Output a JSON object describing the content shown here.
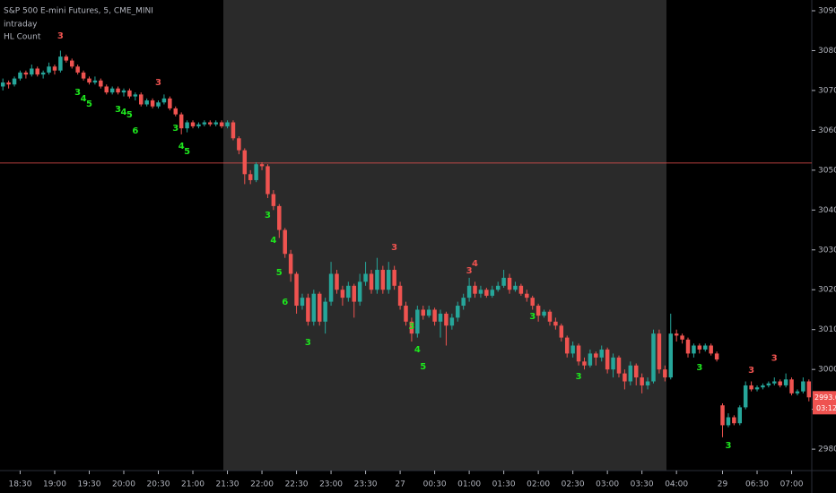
{
  "chart_data": {
    "type": "candlestick",
    "title": "S&P 500 E-mini Futures, 5, CME_MINI",
    "subtitle": "intraday",
    "indicator": "HL Count",
    "up_color": "#26a69a",
    "down_color": "#ef5350",
    "xlim": [
      -0.5,
      140.5
    ],
    "xticks": [
      {
        "value": 3,
        "label": "18:30"
      },
      {
        "value": 9,
        "label": "19:00"
      },
      {
        "value": 15,
        "label": "19:30"
      },
      {
        "value": 21,
        "label": "20:00"
      },
      {
        "value": 27,
        "label": "20:30"
      },
      {
        "value": 33,
        "label": "21:00"
      },
      {
        "value": 39,
        "label": "21:30"
      },
      {
        "value": 45,
        "label": "22:00"
      },
      {
        "value": 51,
        "label": "22:30"
      },
      {
        "value": 57,
        "label": "23:00"
      },
      {
        "value": 63,
        "label": "23:30"
      },
      69,
      {
        "value": 75,
        "label": "00:30"
      },
      {
        "value": 81,
        "label": "01:00"
      },
      {
        "value": 87,
        "label": "01:30"
      },
      {
        "value": 93,
        "label": "02:00"
      },
      {
        "value": 99,
        "label": "02:30"
      },
      {
        "value": 105,
        "label": "03:00"
      },
      {
        "value": 111,
        "label": "03:30"
      },
      {
        "value": 117,
        "label": "04:00"
      },
      {
        "value": 125,
        "label": "29"
      },
      {
        "value": 131,
        "label": "06:30"
      },
      {
        "value": 137,
        "label": "07:00"
      }
    ],
    "xtick_day_labels": {
      "69": "27"
    },
    "ylim": [
      2975.3,
      3092.7
    ],
    "yticks": [
      {
        "value": 2980,
        "label": "2980.00"
      },
      {
        "value": 2990,
        "label": "2990.00"
      },
      {
        "value": 3000,
        "label": "3000.00"
      },
      {
        "value": 3010,
        "label": "3010.00"
      },
      {
        "value": 3020,
        "label": "3020.00"
      },
      {
        "value": 3030,
        "label": "3030.00"
      },
      {
        "value": 3040,
        "label": "3040.00"
      },
      {
        "value": 3050,
        "label": "3050.00"
      },
      {
        "value": 3060,
        "label": "3060.00"
      },
      {
        "value": 3070,
        "label": "3070.00"
      },
      {
        "value": 3080,
        "label": "3080.00"
      },
      {
        "value": 3090,
        "label": "3090.00"
      }
    ],
    "hline": {
      "value": 3051.8,
      "color": "#ef5350"
    },
    "last_price": {
      "value": 2993,
      "label": "2993.00"
    },
    "countdown": "03:12",
    "candles": [
      [
        3071,
        3073,
        3070,
        3072
      ],
      [
        3072,
        3072.5,
        3070.5,
        3071.5
      ],
      [
        3071.5,
        3073.5,
        3071,
        3073
      ],
      [
        3073,
        3075,
        3072.5,
        3074.5
      ],
      [
        3074.5,
        3075,
        3073,
        3074
      ],
      [
        3074,
        3076.5,
        3073.5,
        3075.5
      ],
      [
        3075.5,
        3076,
        3073.5,
        3074
      ],
      [
        3074,
        3075,
        3073,
        3074.5
      ],
      [
        3074.5,
        3077,
        3074,
        3076
      ],
      [
        3076,
        3076.5,
        3074,
        3075
      ],
      [
        3075,
        3080,
        3074.5,
        3078.5
      ],
      [
        3078.5,
        3079,
        3077,
        3077.5
      ],
      [
        3077.5,
        3078,
        3075.5,
        3076
      ],
      [
        3076,
        3076.5,
        3074,
        3074.5
      ],
      [
        3074.5,
        3075,
        3072.5,
        3073
      ],
      [
        3073,
        3073.5,
        3071.5,
        3072
      ],
      [
        3072,
        3073.5,
        3071.5,
        3072.5
      ],
      [
        3072.5,
        3073,
        3070.5,
        3071
      ],
      [
        3071,
        3071.5,
        3069,
        3069.5
      ],
      [
        3069.5,
        3071,
        3069,
        3070.5
      ],
      [
        3070.5,
        3071,
        3069,
        3069.5
      ],
      [
        3069.5,
        3070.5,
        3068.5,
        3070
      ],
      [
        3070,
        3070.5,
        3068,
        3068.5
      ],
      [
        3068.5,
        3069.5,
        3067.5,
        3069
      ],
      [
        3069,
        3069.5,
        3066,
        3066.5
      ],
      [
        3066.5,
        3068,
        3066,
        3067.5
      ],
      [
        3067.5,
        3068,
        3065.5,
        3066
      ],
      [
        3066,
        3067.5,
        3065.5,
        3067
      ],
      [
        3067,
        3069,
        3066.5,
        3068
      ],
      [
        3068,
        3068.5,
        3065,
        3065.5
      ],
      [
        3065.5,
        3066,
        3063.5,
        3064
      ],
      [
        3064,
        3064.5,
        3059,
        3060.5
      ],
      [
        3060.5,
        3062.5,
        3059.5,
        3062
      ],
      [
        3062,
        3062.5,
        3060.5,
        3061
      ],
      [
        3061,
        3062,
        3060.5,
        3061.5
      ],
      [
        3061.5,
        3062.5,
        3061,
        3062
      ],
      [
        3062,
        3062.5,
        3061,
        3061.5
      ],
      [
        3061.5,
        3062.5,
        3061,
        3062
      ],
      [
        3062,
        3062.5,
        3060.5,
        3061
      ],
      [
        3061,
        3062.5,
        3060.5,
        3062
      ],
      [
        3062,
        3062.5,
        3057.5,
        3058
      ],
      [
        3058,
        3058.5,
        3054,
        3055
      ],
      [
        3055,
        3055.5,
        3046.5,
        3049
      ],
      [
        3049,
        3050,
        3046.5,
        3047.5
      ],
      [
        3047.5,
        3052,
        3047,
        3051.5
      ],
      [
        3051.5,
        3052,
        3050,
        3051
      ],
      [
        3051,
        3051.5,
        3043,
        3044
      ],
      [
        3044,
        3045,
        3040,
        3041
      ],
      [
        3041,
        3041.5,
        3033,
        3035
      ],
      [
        3035,
        3035.5,
        3028,
        3029
      ],
      [
        3029,
        3030,
        3022,
        3024
      ],
      [
        3024,
        3024.5,
        3014,
        3016
      ],
      [
        3016,
        3019,
        3015,
        3018
      ],
      [
        3018,
        3019,
        3011,
        3012
      ],
      [
        3012,
        3020,
        3011,
        3019
      ],
      [
        3019,
        3019.5,
        3011,
        3012
      ],
      [
        3012,
        3018,
        3009,
        3017
      ],
      [
        3017,
        3027,
        3016,
        3024
      ],
      [
        3024,
        3025,
        3019,
        3020
      ],
      [
        3020,
        3021,
        3016,
        3018
      ],
      [
        3018,
        3022,
        3017,
        3021
      ],
      [
        3021,
        3021.5,
        3013,
        3017
      ],
      [
        3017,
        3024,
        3016,
        3022
      ],
      [
        3022,
        3027,
        3021,
        3024
      ],
      [
        3024,
        3025,
        3019,
        3020
      ],
      [
        3020,
        3028,
        3019,
        3025
      ],
      [
        3025,
        3026,
        3019,
        3020
      ],
      [
        3020,
        3027,
        3019,
        3025
      ],
      [
        3025,
        3026,
        3020,
        3021
      ],
      [
        3021,
        3022,
        3015,
        3016
      ],
      [
        3016,
        3017,
        3011,
        3012
      ],
      [
        3012,
        3013,
        3007,
        3009
      ],
      [
        3009,
        3016,
        3008,
        3015
      ],
      [
        3015,
        3016,
        3012.5,
        3013.5
      ],
      [
        3013.5,
        3016,
        3013,
        3015
      ],
      [
        3015,
        3015.5,
        3011,
        3012
      ],
      [
        3012,
        3015,
        3008,
        3014
      ],
      [
        3014,
        3014.5,
        3006,
        3011
      ],
      [
        3011,
        3014,
        3010,
        3013
      ],
      [
        3013,
        3017,
        3012,
        3016
      ],
      [
        3016,
        3019,
        3015,
        3018
      ],
      [
        3018,
        3023,
        3017,
        3021
      ],
      [
        3021,
        3022,
        3018,
        3019
      ],
      [
        3019,
        3021,
        3018,
        3020
      ],
      [
        3020,
        3020.5,
        3018,
        3018.5
      ],
      [
        3018.5,
        3021,
        3018,
        3020
      ],
      [
        3020,
        3022,
        3019.5,
        3021
      ],
      [
        3021,
        3025,
        3020.5,
        3023
      ],
      [
        3023,
        3024,
        3019,
        3020
      ],
      [
        3020,
        3022,
        3019.5,
        3021
      ],
      [
        3021,
        3021.5,
        3018.5,
        3019
      ],
      [
        3019,
        3020,
        3017,
        3018
      ],
      [
        3018,
        3018.5,
        3015,
        3016
      ],
      [
        3016,
        3016.5,
        3012,
        3013.5
      ],
      [
        3013.5,
        3015,
        3013,
        3014.5
      ],
      [
        3014.5,
        3015,
        3011,
        3012
      ],
      [
        3012,
        3013,
        3010,
        3011
      ],
      [
        3011,
        3011.5,
        3007,
        3008
      ],
      [
        3008,
        3008.5,
        3003,
        3004
      ],
      [
        3004,
        3007,
        3003,
        3006
      ],
      [
        3006,
        3006.5,
        3001,
        3002
      ],
      [
        3002,
        3003,
        3000,
        3001
      ],
      [
        3001,
        3005,
        3000.5,
        3004
      ],
      [
        3004,
        3004.5,
        3001,
        3003
      ],
      [
        3003,
        3006,
        3002,
        3005
      ],
      [
        3005,
        3005.5,
        2999,
        3000
      ],
      [
        3000,
        3004,
        2998,
        3003
      ],
      [
        3003,
        3003.5,
        2998,
        2999
      ],
      [
        2999,
        3000,
        2995,
        2997
      ],
      [
        2997,
        3002,
        2996,
        3001
      ],
      [
        3001,
        3001.5,
        2996,
        2998
      ],
      [
        2998,
        2999,
        2994,
        2996
      ],
      [
        2996,
        2998,
        2995,
        2997
      ],
      [
        2997,
        3010,
        2996.5,
        3009
      ],
      [
        3009,
        3010,
        2999,
        3000
      ],
      [
        3000,
        3001,
        2997,
        2998
      ],
      [
        2998,
        3014,
        2997.5,
        3009
      ],
      [
        3009,
        3010,
        3007,
        3008.5
      ],
      [
        3008.5,
        3009,
        3006.5,
        3007.5
      ],
      [
        3007.5,
        3008,
        3003,
        3004
      ],
      [
        3004,
        3006.5,
        3003,
        3006
      ],
      [
        3006,
        3006.5,
        3004,
        3005
      ],
      [
        3005,
        3006.5,
        3004.5,
        3006
      ],
      [
        3006,
        3006.5,
        3003.5,
        3004
      ],
      [
        3004,
        3004.5,
        3002,
        3002.5
      ],
      [
        2991,
        2991.5,
        2983,
        2986
      ],
      [
        2986,
        2989,
        2985.5,
        2988
      ],
      [
        2988,
        2988.5,
        2986,
        2986.5
      ],
      [
        2986.5,
        2991,
        2986,
        2990.5
      ],
      [
        2990.5,
        2997,
        2990,
        2996
      ],
      [
        2996,
        2997,
        2994.5,
        2995
      ],
      [
        2995,
        2996,
        2994.5,
        2995.5
      ],
      [
        2995.5,
        2996.5,
        2995,
        2996
      ],
      [
        2996,
        2997,
        2995.5,
        2996.5
      ],
      [
        2996.5,
        2998,
        2996,
        2997
      ],
      [
        2997,
        2997.5,
        2995.5,
        2996
      ],
      [
        2996,
        2999,
        2995.5,
        2997.5
      ],
      [
        2997.5,
        2998,
        2993.5,
        2994
      ],
      [
        2994,
        2995,
        2993.5,
        2994.5
      ],
      [
        2994.5,
        2998,
        2994,
        2997
      ],
      [
        2997,
        2997.5,
        2992,
        2993
      ]
    ],
    "annotations": [
      {
        "text": "3",
        "x": 10,
        "y": 3083.7,
        "color": "#ef5350"
      },
      {
        "text": "3",
        "x": 13,
        "y": 3069.5,
        "color": "#1ee61e"
      },
      {
        "text": "4",
        "x": 14,
        "y": 3068,
        "color": "#1ee61e"
      },
      {
        "text": "5",
        "x": 15,
        "y": 3066.6,
        "color": "#1ee61e"
      },
      {
        "text": "3",
        "x": 20,
        "y": 3065.3,
        "color": "#1ee61e"
      },
      {
        "text": "4",
        "x": 21,
        "y": 3064.6,
        "color": "#1ee61e"
      },
      {
        "text": "5",
        "x": 22,
        "y": 3063.9,
        "color": "#1ee61e"
      },
      {
        "text": "6",
        "x": 23,
        "y": 3059.9,
        "color": "#1ee61e"
      },
      {
        "text": "3",
        "x": 27,
        "y": 3072,
        "color": "#ef5350"
      },
      {
        "text": "3",
        "x": 30,
        "y": 3060.5,
        "color": "#1ee61e"
      },
      {
        "text": "4",
        "x": 31,
        "y": 3056,
        "color": "#1ee61e"
      },
      {
        "text": "5",
        "x": 32,
        "y": 3054.7,
        "color": "#1ee61e"
      },
      {
        "text": "3",
        "x": 46,
        "y": 3038.7,
        "color": "#1ee61e"
      },
      {
        "text": "4",
        "x": 47,
        "y": 3032.4,
        "color": "#1ee61e"
      },
      {
        "text": "5",
        "x": 48,
        "y": 3024.3,
        "color": "#1ee61e"
      },
      {
        "text": "6",
        "x": 49,
        "y": 3016.9,
        "color": "#1ee61e"
      },
      {
        "text": "3",
        "x": 53,
        "y": 3006.8,
        "color": "#1ee61e"
      },
      {
        "text": "3",
        "x": 68,
        "y": 3030.6,
        "color": "#ef5350"
      },
      {
        "text": "3",
        "x": 71,
        "y": 3010.8,
        "color": "#1ee61e"
      },
      {
        "text": "4",
        "x": 72,
        "y": 3005,
        "color": "#1ee61e"
      },
      {
        "text": "5",
        "x": 73,
        "y": 3000.7,
        "color": "#1ee61e"
      },
      {
        "text": "3",
        "x": 81,
        "y": 3024.8,
        "color": "#ef5350"
      },
      {
        "text": "4",
        "x": 82,
        "y": 3026.6,
        "color": "#ef5350"
      },
      {
        "text": "3",
        "x": 92,
        "y": 3013.3,
        "color": "#1ee61e"
      },
      {
        "text": "3",
        "x": 100,
        "y": 2998.2,
        "color": "#1ee61e"
      },
      {
        "text": "3",
        "x": 121,
        "y": 3000.5,
        "color": "#1ee61e"
      },
      {
        "text": "3",
        "x": 126,
        "y": 2980.9,
        "color": "#1ee61e"
      },
      {
        "text": "3",
        "x": 130,
        "y": 2999.8,
        "color": "#ef5350"
      },
      {
        "text": "3",
        "x": 134,
        "y": 3002.9,
        "color": "#ef5350"
      }
    ]
  }
}
